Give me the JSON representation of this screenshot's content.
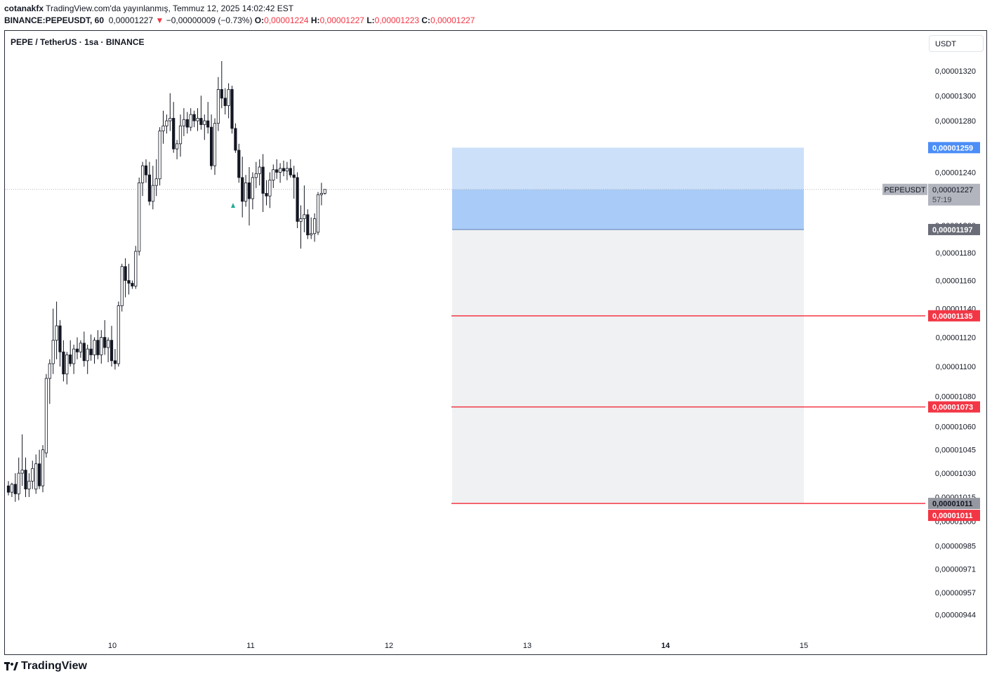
{
  "header": {
    "user": "cotanakfx",
    "published": "TradingView.com'da yayınlanmış, Temmuz 12, 2025 14:02:42 EST",
    "symbol": "BINANCE:PEPEUSDT, 60",
    "last": "0,00001227",
    "change": "−0,00000009 (−0.73%)",
    "o_label": "O:",
    "o": "0,00001224",
    "h_label": "H:",
    "h": "0,00001227",
    "l_label": "L:",
    "l": "0,00001223",
    "c_label": "C:",
    "c": "0,00001227"
  },
  "pane": {
    "title": "PEPE / TetherUS · 1sa · BINANCE",
    "currency": "USDT"
  },
  "footer": {
    "brand": "TradingView"
  },
  "colors": {
    "up": "#ffffff",
    "down": "#131722",
    "wick": "#131722",
    "level": "#f23645",
    "target_zone": "#cce0f9",
    "entry_zone": "#a9cbf7",
    "stop_zone": "#f0f1f3"
  },
  "chart_data": {
    "type": "candlestick",
    "title": "PEPE / TetherUS · 1sa · BINANCE",
    "x_ticks": [
      "10",
      "11",
      "12",
      "13",
      "14",
      "15"
    ],
    "y_ticks": [
      "0,00001320",
      "0,00001300",
      "0,00001280",
      "0,00001240",
      "0,00001200",
      "0,00001180",
      "0,00001160",
      "0,00001140",
      "0,00001120",
      "0,00001100",
      "0,00001080",
      "0,00001060",
      "0,00001045",
      "0,00001030",
      "0,00001015",
      "0,00001000",
      "0,00000985",
      "0,00000971",
      "0,00000957",
      "0,00000944"
    ],
    "y_scale": "log",
    "price_labels": [
      {
        "text": "0,00001259",
        "value": 1.259e-05,
        "kind": "target"
      },
      {
        "text": "0,00001227",
        "value": 1.227e-05,
        "kind": "last",
        "sub": "57:19",
        "symbol": "PEPEUSDT"
      },
      {
        "text": "0,00001197",
        "value": 1.197e-05,
        "kind": "entry"
      },
      {
        "text": "0,00001135",
        "value": 1.135e-05,
        "kind": "level"
      },
      {
        "text": "0,00001073",
        "value": 1.073e-05,
        "kind": "level"
      },
      {
        "text": "0,00001011",
        "value": 1.011e-05,
        "kind": "stop"
      },
      {
        "text": "0,00001011",
        "value": 1.011e-05,
        "kind": "level"
      }
    ],
    "levels": [
      1.135e-05,
      1.073e-05,
      1.011e-05
    ],
    "position": {
      "target": 1.259e-05,
      "entry": 1.227e-05,
      "stop_boundary": 1.197e-05,
      "stop": 1.011e-05
    },
    "candles": [
      [
        1.022e-05,
        1.025e-05,
        1.016e-05,
        1.018e-05
      ],
      [
        1.018e-05,
        1.024e-05,
        1.015e-05,
        1.023e-05
      ],
      [
        1.023e-05,
        1.03e-05,
        1.012e-05,
        1.017e-05
      ],
      [
        1.017e-05,
        1.04e-05,
        1.013e-05,
        1.03e-05
      ],
      [
        1.03e-05,
        1.055e-05,
        1.022e-05,
        1.032e-05
      ],
      [
        1.032e-05,
        1.04e-05,
        1.015e-05,
        1.02e-05
      ],
      [
        1.02e-05,
        1.03e-05,
        1.015e-05,
        1.025e-05
      ],
      [
        1.025e-05,
        1.038e-05,
        1.02e-05,
        1.033e-05
      ],
      [
        1.02e-05,
        1.042e-05,
        1.017e-05,
        1.036e-05
      ],
      [
        1.036e-05,
        1.045e-05,
        1.02e-05,
        1.022e-05
      ],
      [
        1.022e-05,
        1.048e-05,
        1.018e-05,
        1.045e-05
      ],
      [
        1.043e-05,
        1.095e-05,
        1.04e-05,
        1.092e-05
      ],
      [
        1.092e-05,
        1.105e-05,
        1.075e-05,
        1.102e-05
      ],
      [
        1.102e-05,
        1.14e-05,
        1.095e-05,
        1.118e-05
      ],
      [
        1.118e-05,
        1.145e-05,
        1.105e-05,
        1.128e-05
      ],
      [
        1.128e-05,
        1.132e-05,
        1.1e-05,
        1.11e-05
      ],
      [
        1.11e-05,
        1.118e-05,
        1.09e-05,
        1.095e-05
      ],
      [
        1.095e-05,
        1.11e-05,
        1.088e-05,
        1.108e-05
      ],
      [
        1.108e-05,
        1.118e-05,
        1.1e-05,
        1.102e-05
      ],
      [
        1.102e-05,
        1.115e-05,
        1.095e-05,
        1.112e-05
      ],
      [
        1.112e-05,
        1.12e-05,
        1.105e-05,
        1.11e-05
      ],
      [
        1.11e-05,
        1.118e-05,
        1.106e-05,
        1.116e-05
      ],
      [
        1.116e-05,
        1.124e-05,
        1.1e-05,
        1.104e-05
      ],
      [
        1.104e-05,
        1.115e-05,
        1.095e-05,
        1.112e-05
      ],
      [
        1.112e-05,
        1.122e-05,
        1.104e-05,
        1.108e-05
      ],
      [
        1.108e-05,
        1.12e-05,
        1.102e-05,
        1.118e-05
      ],
      [
        1.118e-05,
        1.125e-05,
        1.105e-05,
        1.108e-05
      ],
      [
        1.108e-05,
        1.125e-05,
        1.102e-05,
        1.12e-05
      ],
      [
        1.12e-05,
        1.132e-05,
        1.108e-05,
        1.113e-05
      ],
      [
        1.113e-05,
        1.12e-05,
        1.103e-05,
        1.118e-05
      ],
      [
        1.118e-05,
        1.128e-05,
        1.1e-05,
        1.104e-05
      ],
      [
        1.104e-05,
        1.112e-05,
        1.098e-05,
        1.102e-05
      ],
      [
        1.102e-05,
        1.145e-05,
        1.1e-05,
        1.142e-05
      ],
      [
        1.142e-05,
        1.172e-05,
        1.138e-05,
        1.17e-05
      ],
      [
        1.17e-05,
        1.176e-05,
        1.148e-05,
        1.16e-05
      ],
      [
        1.16e-05,
        1.172e-05,
        1.15e-05,
        1.158e-05
      ],
      [
        1.158e-05,
        1.16e-05,
        1.154e-05,
        1.156e-05
      ],
      [
        1.156e-05,
        1.185e-05,
        1.154e-05,
        1.181e-05
      ],
      [
        1.181e-05,
        1.236e-05,
        1.178e-05,
        1.232e-05
      ],
      [
        1.232e-05,
        1.248e-05,
        1.222e-05,
        1.245e-05
      ],
      [
        1.245e-05,
        1.25e-05,
        1.232e-05,
        1.238e-05
      ],
      [
        1.238e-05,
        1.248e-05,
        1.215e-05,
        1.218e-05
      ],
      [
        1.218e-05,
        1.245e-05,
        1.212e-05,
        1.23e-05
      ],
      [
        1.23e-05,
        1.25e-05,
        1.222e-05,
        1.235e-05
      ],
      [
        1.235e-05,
        1.275e-05,
        1.23e-05,
        1.272e-05
      ],
      [
        1.272e-05,
        1.288e-05,
        1.262e-05,
        1.276e-05
      ],
      [
        1.276e-05,
        1.285e-05,
        1.27e-05,
        1.28e-05
      ],
      [
        1.28e-05,
        1.302e-05,
        1.272e-05,
        1.282e-05
      ],
      [
        1.282e-05,
        1.295e-05,
        1.255e-05,
        1.258e-05
      ],
      [
        1.258e-05,
        1.265e-05,
        1.25e-05,
        1.262e-05
      ],
      [
        1.262e-05,
        1.285e-05,
        1.252e-05,
        1.276e-05
      ],
      [
        1.276e-05,
        1.29e-05,
        1.268e-05,
        1.281e-05
      ],
      [
        1.281e-05,
        1.287e-05,
        1.27e-05,
        1.275e-05
      ],
      [
        1.275e-05,
        1.29e-05,
        1.272e-05,
        1.285e-05
      ],
      [
        1.285e-05,
        1.288e-05,
        1.275e-05,
        1.28e-05
      ],
      [
        1.28e-05,
        1.29e-05,
        1.272e-05,
        1.282e-05
      ],
      [
        1.282e-05,
        1.3e-05,
        1.273e-05,
        1.277e-05
      ],
      [
        1.277e-05,
        1.285e-05,
        1.265e-05,
        1.28e-05
      ],
      [
        1.28e-05,
        1.295e-05,
        1.27e-05,
        1.275e-05
      ],
      [
        1.275e-05,
        1.285e-05,
        1.242e-05,
        1.245e-05
      ],
      [
        1.245e-05,
        1.282e-05,
        1.238e-05,
        1.278e-05
      ],
      [
        1.278e-05,
        1.315e-05,
        1.272e-05,
        1.305e-05
      ],
      [
        1.305e-05,
        1.328e-05,
        1.29e-05,
        1.298e-05
      ],
      [
        1.298e-05,
        1.306e-05,
        1.285e-05,
        1.292e-05
      ],
      [
        1.292e-05,
        1.31e-05,
        1.282e-05,
        1.305e-05
      ],
      [
        1.305e-05,
        1.308e-05,
        1.27e-05,
        1.274e-05
      ],
      [
        1.274e-05,
        1.278e-05,
        1.255e-05,
        1.257e-05
      ],
      [
        1.257e-05,
        1.262e-05,
        1.232e-05,
        1.236e-05
      ],
      [
        1.236e-05,
        1.252e-05,
        1.206e-05,
        1.218e-05
      ],
      [
        1.218e-05,
        1.238e-05,
        1.214e-05,
        1.232e-05
      ],
      [
        1.232e-05,
        1.244e-05,
        1.2e-05,
        1.22e-05
      ],
      [
        1.22e-05,
        1.24e-05,
        1.212e-05,
        1.236e-05
      ],
      [
        1.236e-05,
        1.248e-05,
        1.228e-05,
        1.239e-05
      ],
      [
        1.239e-05,
        1.25e-05,
        1.23e-05,
        1.244e-05
      ],
      [
        1.244e-05,
        1.254e-05,
        1.21e-05,
        1.224e-05
      ],
      [
        1.224e-05,
        1.234e-05,
        1.215e-05,
        1.222e-05
      ],
      [
        1.222e-05,
        1.24e-05,
        1.213e-05,
        1.234e-05
      ],
      [
        1.234e-05,
        1.246e-05,
        1.228e-05,
        1.242e-05
      ],
      [
        1.242e-05,
        1.25e-05,
        1.235e-05,
        1.24e-05
      ],
      [
        1.24e-05,
        1.247e-05,
        1.232e-05,
        1.243e-05
      ],
      [
        1.243e-05,
        1.249e-05,
        1.237e-05,
        1.241e-05
      ],
      [
        1.241e-05,
        1.248e-05,
        1.234e-05,
        1.243e-05
      ],
      [
        1.243e-05,
        1.25e-05,
        1.236e-05,
        1.238e-05
      ],
      [
        1.238e-05,
        1.245e-05,
        1.22e-05,
        1.236e-05
      ],
      [
        1.236e-05,
        1.24e-05,
        1.198e-05,
        1.203e-05
      ],
      [
        1.203e-05,
        1.215e-05,
        1.183e-05,
        1.205e-05
      ],
      [
        1.205e-05,
        1.23e-05,
        1.195e-05,
        1.208e-05
      ],
      [
        1.208e-05,
        1.212e-05,
        1.19e-05,
        1.193e-05
      ],
      [
        1.193e-05,
        1.206e-05,
        1.19e-05,
        1.194e-05
      ],
      [
        1.194e-05,
        1.209e-05,
        1.188e-05,
        1.205e-05
      ],
      [
        1.195e-05,
        1.225e-05,
        1.193e-05,
        1.223e-05
      ],
      [
        1.223e-05,
        1.232e-05,
        1.215e-05,
        1.224e-05
      ],
      [
        1.224e-05,
        1.227e-05,
        1.223e-05,
        1.227e-05
      ]
    ]
  }
}
